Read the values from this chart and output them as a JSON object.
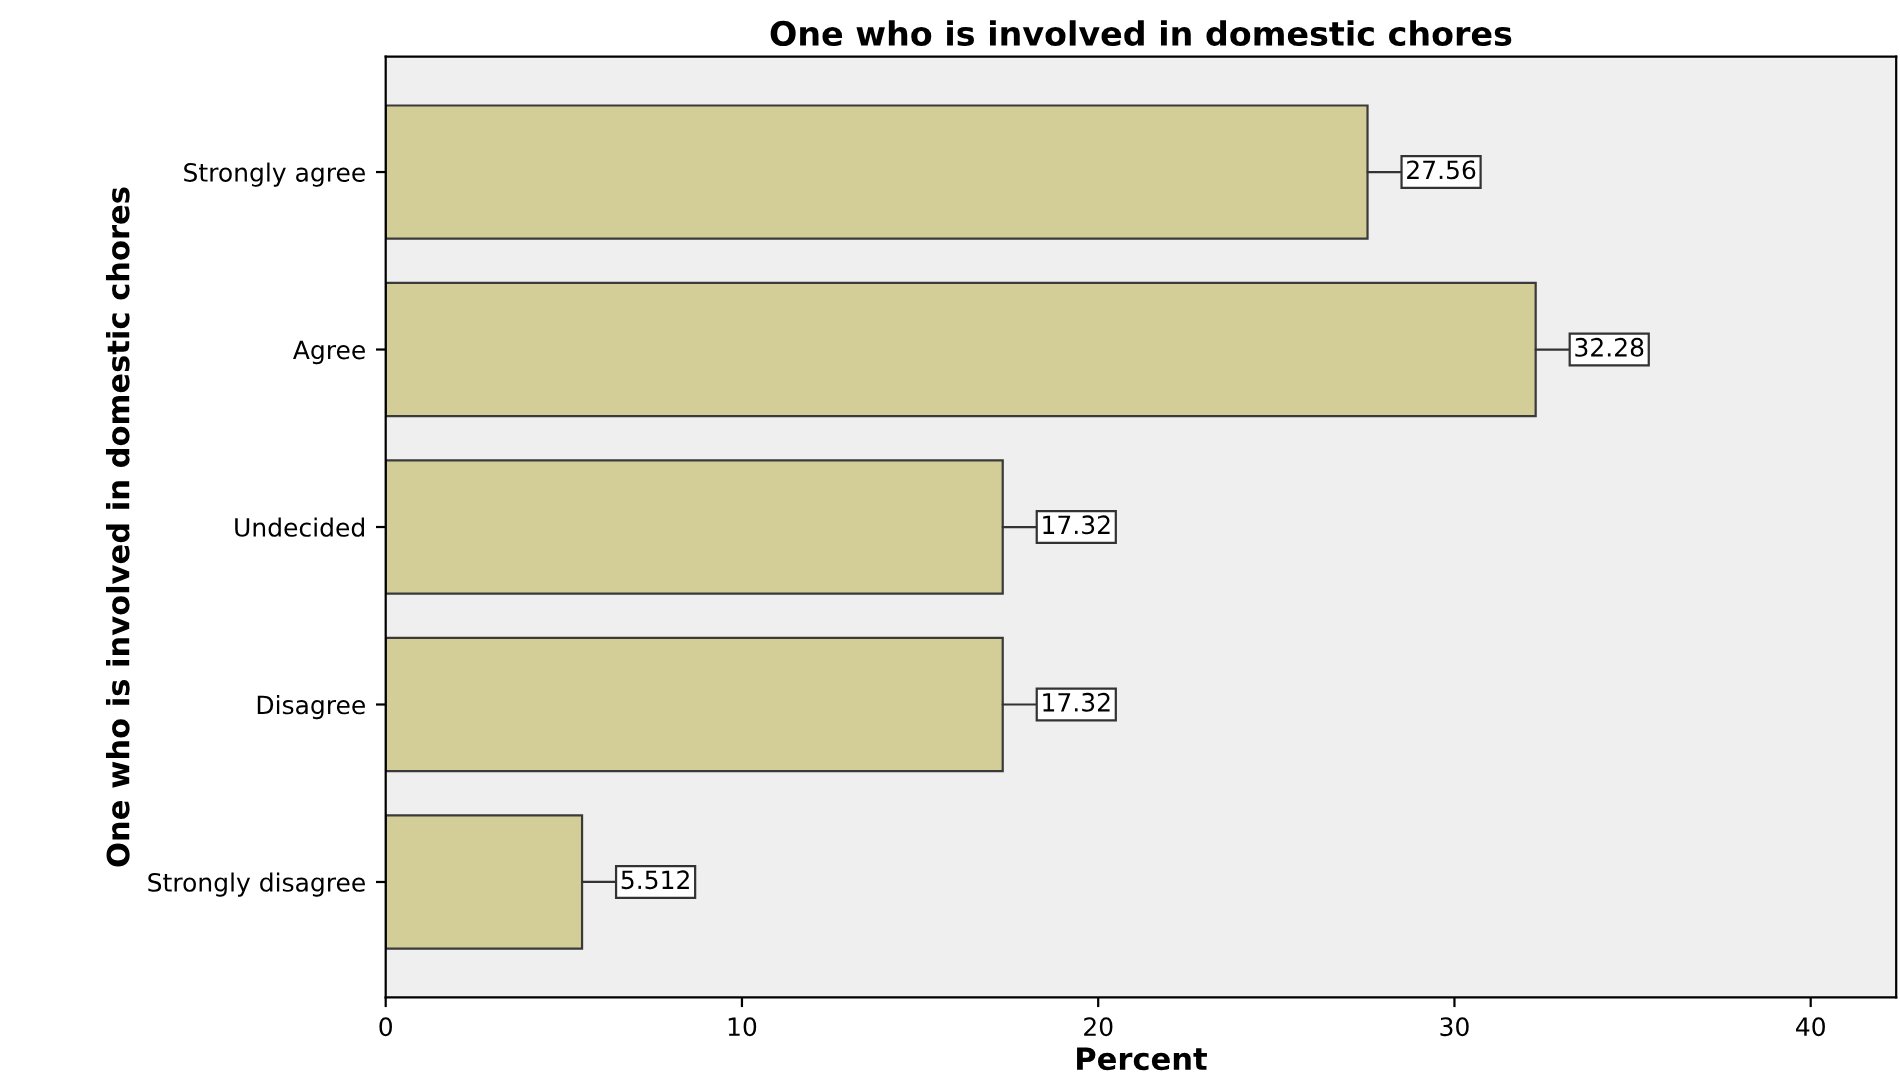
{
  "chart_data": {
    "type": "bar",
    "orientation": "horizontal",
    "title": "One who is involved in domestic chores",
    "xlabel": "Percent",
    "ylabel": "One who is involved in domestic chores",
    "categories": [
      "Strongly agree",
      "Agree",
      "Undecided",
      "Disagree",
      "Strongly disagree"
    ],
    "values": [
      27.56,
      32.28,
      17.32,
      17.32,
      5.512
    ],
    "color": "#d3ce98",
    "xlim": [
      0,
      42.4
    ],
    "xticks": [
      0,
      10,
      20,
      30,
      40
    ],
    "data_labels": true,
    "grid": false,
    "legend": false
  }
}
